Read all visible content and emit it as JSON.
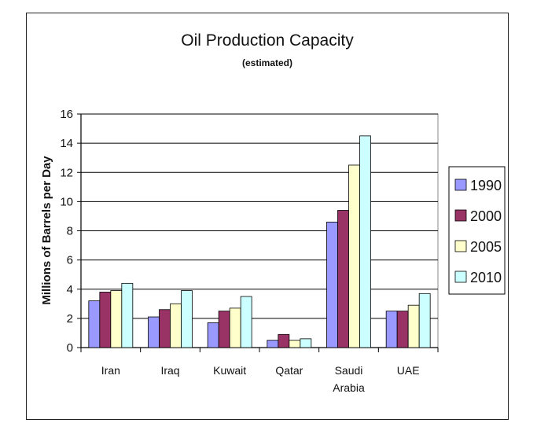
{
  "chart_data": {
    "type": "bar",
    "title": "Oil Production Capacity",
    "subtitle": "(estimated)",
    "xlabel": "",
    "ylabel": "Millions of Barrels per Day",
    "ylim": [
      0,
      16
    ],
    "yticks": [
      "0",
      "2",
      "4",
      "6",
      "8",
      "10",
      "12",
      "14",
      "16"
    ],
    "categories": [
      [
        "Iran"
      ],
      [
        "Iraq"
      ],
      [
        "Kuwait"
      ],
      [
        "Qatar"
      ],
      [
        "Saudi",
        "Arabia"
      ],
      [
        "UAE"
      ]
    ],
    "series": [
      {
        "name": "1990",
        "color": "#9999ff",
        "values": [
          3.2,
          2.1,
          1.7,
          0.5,
          8.6,
          2.5
        ]
      },
      {
        "name": "2000",
        "color": "#993366",
        "values": [
          3.8,
          2.6,
          2.5,
          0.9,
          9.4,
          2.5
        ]
      },
      {
        "name": "2005",
        "color": "#ffffcc",
        "values": [
          3.9,
          3.0,
          2.7,
          0.5,
          12.5,
          2.9
        ]
      },
      {
        "name": "2010",
        "color": "#ccffff",
        "values": [
          4.4,
          3.9,
          3.5,
          0.6,
          14.5,
          3.7
        ]
      }
    ],
    "grid": true,
    "legend_position": "right"
  }
}
